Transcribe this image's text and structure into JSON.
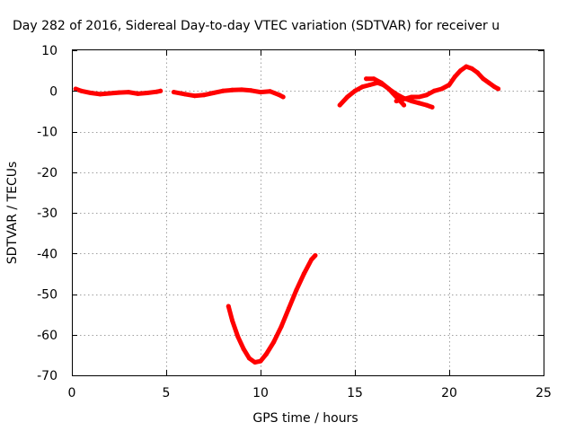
{
  "chart_data": {
    "type": "scatter",
    "title": "Day 282 of 2016, Sidereal Day-to-day VTEC variation (SDTVAR) for receiver u",
    "xlabel": "GPS time / hours",
    "ylabel": "SDTVAR / TECUs",
    "xlim": [
      0,
      25
    ],
    "ylim": [
      -70,
      10
    ],
    "xticks": [
      0,
      5,
      10,
      15,
      20,
      25
    ],
    "yticks": [
      10,
      0,
      -10,
      -20,
      -30,
      -40,
      -50,
      -60,
      -70
    ],
    "grid": true,
    "colors": {
      "series": "#ff0000"
    },
    "series": [
      {
        "segments": [
          {
            "x": [
              0.2,
              0.5,
              1.0,
              1.5,
              2.0,
              2.5,
              3.0,
              3.5,
              4.0,
              4.5,
              4.7
            ],
            "y": [
              0.5,
              0.0,
              -0.5,
              -0.8,
              -0.6,
              -0.4,
              -0.3,
              -0.7,
              -0.5,
              -0.2,
              0.0
            ]
          },
          {
            "x": [
              5.4,
              6.0,
              6.5,
              7.0,
              7.5,
              8.0,
              8.5,
              9.0,
              9.5,
              10.0,
              10.5,
              11.0,
              11.2
            ],
            "y": [
              -0.3,
              -0.8,
              -1.2,
              -1.0,
              -0.5,
              0.0,
              0.2,
              0.3,
              0.1,
              -0.3,
              -0.1,
              -1.0,
              -1.5
            ]
          },
          {
            "x": [
              8.3,
              8.5,
              8.8,
              9.1,
              9.4,
              9.7,
              10.0,
              10.3,
              10.7,
              11.1,
              11.5,
              11.9,
              12.3,
              12.7,
              12.9
            ],
            "y": [
              -53.0,
              -56.5,
              -60.5,
              -63.5,
              -65.8,
              -66.8,
              -66.5,
              -64.8,
              -61.8,
              -58.0,
              -53.5,
              -49.0,
              -45.0,
              -41.5,
              -40.5
            ]
          },
          {
            "x": [
              14.2,
              14.6,
              15.0,
              15.4,
              15.8,
              16.2,
              16.5,
              16.8,
              17.0,
              17.3,
              17.6
            ],
            "y": [
              -3.5,
              -1.5,
              0.0,
              1.0,
              1.5,
              2.0,
              1.5,
              0.5,
              -0.5,
              -2.0,
              -3.5
            ]
          },
          {
            "x": [
              15.6,
              16.0,
              16.4,
              16.8,
              17.2,
              17.6,
              18.0,
              18.4,
              18.8,
              19.1
            ],
            "y": [
              3.0,
              3.0,
              2.0,
              0.5,
              -0.8,
              -1.8,
              -2.5,
              -3.0,
              -3.5,
              -4.0
            ]
          },
          {
            "x": [
              17.2,
              17.6,
              18.0,
              18.4,
              18.8,
              19.2,
              19.6,
              20.0,
              20.3,
              20.6,
              20.9,
              21.2,
              21.5,
              21.8,
              22.1,
              22.4,
              22.6
            ],
            "y": [
              -2.5,
              -2.0,
              -1.5,
              -1.5,
              -1.0,
              0.0,
              0.5,
              1.5,
              3.5,
              5.0,
              6.0,
              5.5,
              4.5,
              3.0,
              2.0,
              1.0,
              0.5
            ]
          }
        ]
      }
    ]
  }
}
